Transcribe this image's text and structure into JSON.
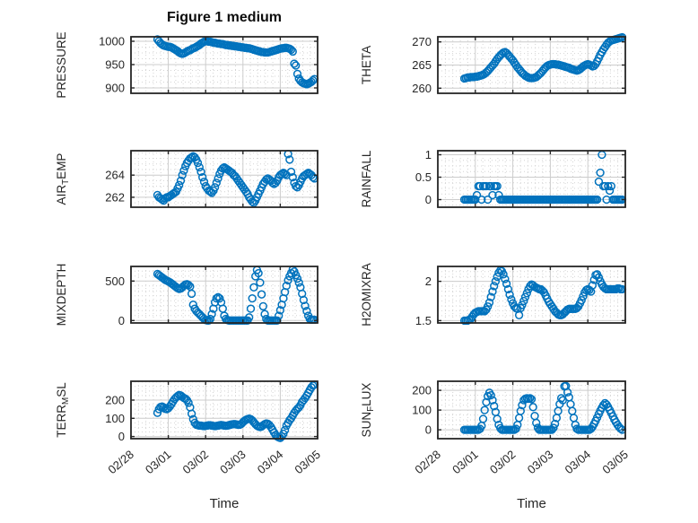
{
  "colors": {
    "marker": "#0072BD",
    "axis": "#262626",
    "grid_major": "#cccccc",
    "grid_minor": "#d4d4d4",
    "text": "#262626",
    "title": "#0d0d0d"
  },
  "chart_data": {
    "type": "scatter",
    "title": "Figure 1 medium",
    "xlabel": "Time",
    "legend": "none",
    "grid": "major solid, minor dotted",
    "x_tick_labels": [
      "02/28",
      "03/01",
      "03/02",
      "03/03",
      "03/04",
      "03/05"
    ],
    "x_tick_values": [
      0,
      1,
      2,
      3,
      4,
      5
    ],
    "xlim_days": [
      0,
      5
    ],
    "x_start_days": 0.7083,
    "x_step_days": 0.0416667,
    "marker": "open-circle",
    "subplots": [
      {
        "id": "pressure",
        "name": "PRESSURE",
        "row": 0,
        "col": 0,
        "ylabel": [
          {
            "t": "PRESSURE"
          }
        ],
        "ylim": [
          888.5,
          1009.6
        ],
        "yticks": [
          900,
          950,
          1000
        ],
        "ytick_labels": [
          "900",
          "950",
          "1000"
        ],
        "yminor": 4,
        "y": [
          1004,
          1000,
          996,
          993,
          991,
          990,
          989,
          988,
          988,
          987,
          985,
          983,
          981,
          979,
          976,
          974,
          973,
          974,
          976,
          978,
          980,
          981,
          983,
          985,
          986,
          988,
          990,
          992,
          995,
          997,
          999,
          1000,
          1000,
          999,
          999,
          998,
          997,
          997,
          996,
          995,
          995,
          994,
          994,
          993,
          992,
          992,
          991,
          991,
          990,
          990,
          989,
          989,
          988,
          988,
          987,
          987,
          986,
          986,
          985,
          985,
          984,
          983,
          982,
          981,
          980,
          979,
          978,
          977,
          977,
          976,
          976,
          976,
          977,
          978,
          979,
          980,
          981,
          982,
          983,
          984,
          985,
          985,
          986,
          986,
          985,
          984,
          982,
          978,
          952,
          948,
          930,
          920,
          915,
          912,
          910,
          909,
          908,
          909,
          911,
          913,
          916,
          919
        ]
      },
      {
        "id": "theta",
        "name": "THETA",
        "row": 0,
        "col": 1,
        "ylabel": [
          {
            "t": "THETA"
          }
        ],
        "ylim": [
          258.9,
          271.1
        ],
        "yticks": [
          260,
          265,
          270
        ],
        "ytick_labels": [
          "260",
          "265",
          "270"
        ],
        "yminor": 4,
        "y": [
          262.1,
          262.2,
          262.3,
          262.3,
          262.4,
          262.4,
          262.4,
          262.5,
          262.5,
          262.6,
          262.7,
          262.8,
          262.9,
          263.1,
          263.4,
          263.7,
          264.1,
          264.5,
          264.9,
          265.3,
          265.8,
          266.3,
          266.7,
          267.1,
          267.4,
          267.7,
          267.8,
          267.6,
          267.2,
          266.8,
          266.4,
          266.0,
          265.5,
          265.0,
          264.5,
          264.1,
          263.7,
          263.3,
          263.0,
          262.7,
          262.5,
          262.3,
          262.2,
          262.2,
          262.2,
          262.3,
          262.4,
          262.7,
          263.0,
          263.3,
          263.7,
          264.1,
          264.5,
          264.8,
          265.0,
          265.1,
          265.2,
          265.2,
          265.2,
          265.1,
          265.1,
          265.0,
          264.9,
          264.8,
          264.7,
          264.6,
          264.5,
          264.4,
          264.2,
          264.1,
          264.0,
          263.9,
          263.8,
          263.9,
          264.1,
          264.4,
          264.7,
          264.9,
          265.1,
          265.2,
          265.1,
          264.9,
          264.7,
          264.8,
          265.2,
          265.8,
          266.5,
          267.2,
          267.8,
          268.4,
          268.9,
          269.4,
          269.8,
          270.1,
          270.3,
          270.4,
          270.5,
          270.6,
          270.7,
          270.8,
          270.9,
          271.0
        ]
      },
      {
        "id": "air-temp",
        "name": "AIR_TEMP",
        "row": 1,
        "col": 0,
        "ylabel": [
          {
            "t": "AIR"
          },
          {
            "t": "T",
            "sub": true
          },
          {
            "t": "EMP"
          }
        ],
        "ylim": [
          261.1,
          266.2
        ],
        "yticks": [
          262,
          264
        ],
        "ytick_labels": [
          "262",
          "264"
        ],
        "yminor": 4,
        "y": [
          262.2,
          262.0,
          261.9,
          261.8,
          261.7,
          261.9,
          262.0,
          262.0,
          262.1,
          262.2,
          262.3,
          262.4,
          262.5,
          262.8,
          263.1,
          263.5,
          264.0,
          264.4,
          264.8,
          265.1,
          265.3,
          265.5,
          265.6,
          265.7,
          265.6,
          265.4,
          265.1,
          264.7,
          264.3,
          263.8,
          263.4,
          263.0,
          262.8,
          262.6,
          262.5,
          262.4,
          262.6,
          262.9,
          263.3,
          263.7,
          264.1,
          264.4,
          264.6,
          264.7,
          264.6,
          264.5,
          264.4,
          264.3,
          264.2,
          264.0,
          263.9,
          263.7,
          263.5,
          263.3,
          263.1,
          262.9,
          262.7,
          262.5,
          262.3,
          262.0,
          261.8,
          261.6,
          261.5,
          261.7,
          262.0,
          262.3,
          262.6,
          262.9,
          263.2,
          263.4,
          263.6,
          263.7,
          263.6,
          263.5,
          263.3,
          263.2,
          263.3,
          263.5,
          263.8,
          264.0,
          264.1,
          264.2,
          264.1,
          264.0,
          265.9,
          265.4,
          264.3,
          263.8,
          263.3,
          263.0,
          262.9,
          263.1,
          263.4,
          263.7,
          263.9,
          264.0,
          264.1,
          264.2,
          264.1,
          264.0,
          263.8,
          263.7
        ]
      },
      {
        "id": "rainfall",
        "name": "RAINFALL",
        "row": 1,
        "col": 1,
        "ylabel": [
          {
            "t": "RAINFALL"
          }
        ],
        "ylim": [
          -0.17,
          1.09
        ],
        "yticks": [
          0,
          0.5,
          1
        ],
        "ytick_labels": [
          "0",
          "0.5",
          "1"
        ],
        "yminor": 4,
        "y": [
          0,
          0,
          0,
          0,
          0,
          0,
          0,
          0,
          0.1,
          0.3,
          0.3,
          0,
          0.3,
          0.3,
          0.3,
          0,
          0.3,
          0.3,
          0.1,
          0.3,
          0.3,
          0.3,
          0.1,
          0,
          0,
          0,
          0,
          0,
          0,
          0,
          0,
          0,
          0,
          0,
          0,
          0,
          0,
          0,
          0,
          0,
          0,
          0,
          0,
          0,
          0,
          0,
          0,
          0,
          0,
          0,
          0,
          0,
          0,
          0,
          0,
          0,
          0,
          0,
          0,
          0,
          0,
          0,
          0,
          0,
          0,
          0,
          0,
          0,
          0,
          0,
          0,
          0,
          0,
          0,
          0,
          0,
          0,
          0,
          0,
          0,
          0,
          0,
          0,
          0,
          0,
          0,
          0.4,
          0.6,
          1.0,
          0.3,
          0.3,
          0,
          0.3,
          0.2,
          0.3,
          0,
          0,
          0,
          0,
          0,
          0,
          0
        ]
      },
      {
        "id": "mixdepth",
        "name": "MIXDEPTH",
        "row": 2,
        "col": 0,
        "ylabel": [
          {
            "t": "MIXDEPTH"
          }
        ],
        "ylim": [
          -31,
          685
        ],
        "yticks": [
          0,
          500
        ],
        "ytick_labels": [
          "0",
          "500"
        ],
        "yminor": 8,
        "y": [
          590,
          575,
          560,
          545,
          530,
          515,
          505,
          495,
          485,
          470,
          455,
          440,
          425,
          410,
          400,
          405,
          420,
          440,
          455,
          460,
          450,
          430,
          340,
          200,
          150,
          120,
          100,
          80,
          60,
          40,
          20,
          5,
          0,
          0,
          20,
          80,
          150,
          230,
          280,
          295,
          280,
          230,
          150,
          60,
          20,
          5,
          0,
          0,
          0,
          0,
          0,
          0,
          0,
          0,
          0,
          0,
          0,
          0,
          0,
          40,
          150,
          280,
          420,
          560,
          640,
          600,
          480,
          330,
          180,
          80,
          20,
          0,
          0,
          0,
          0,
          0,
          0,
          0,
          60,
          130,
          200,
          280,
          360,
          440,
          510,
          560,
          600,
          645,
          620,
          575,
          530,
          480,
          420,
          340,
          260,
          185,
          120,
          60,
          20,
          10,
          10,
          10
        ]
      },
      {
        "id": "h2omixra",
        "name": "H2OMIXRA",
        "row": 2,
        "col": 1,
        "ylabel": [
          {
            "t": "H2OMIXRA"
          }
        ],
        "ylim": [
          1.47,
          2.19
        ],
        "yticks": [
          1.5,
          2
        ],
        "ytick_labels": [
          "1.5",
          "2"
        ],
        "yminor": 8,
        "y": [
          1.5,
          1.5,
          1.5,
          1.51,
          1.52,
          1.55,
          1.58,
          1.6,
          1.61,
          1.62,
          1.62,
          1.62,
          1.62,
          1.62,
          1.64,
          1.68,
          1.73,
          1.8,
          1.87,
          1.94,
          2.0,
          2.06,
          2.11,
          2.14,
          2.13,
          2.09,
          2.03,
          1.97,
          1.9,
          1.83,
          1.77,
          1.72,
          1.68,
          1.66,
          1.65,
          1.57,
          1.66,
          1.7,
          1.75,
          1.8,
          1.85,
          1.9,
          1.94,
          1.96,
          1.95,
          1.93,
          1.92,
          1.91,
          1.9,
          1.9,
          1.88,
          1.86,
          1.82,
          1.78,
          1.74,
          1.71,
          1.68,
          1.65,
          1.62,
          1.6,
          1.58,
          1.57,
          1.57,
          1.58,
          1.6,
          1.62,
          1.64,
          1.65,
          1.65,
          1.65,
          1.65,
          1.65,
          1.66,
          1.68,
          1.72,
          1.76,
          1.81,
          1.86,
          1.89,
          1.9,
          1.89,
          1.87,
          1.95,
          2.02,
          2.08,
          2.09,
          2.05,
          2.0,
          1.96,
          1.93,
          1.91,
          1.9,
          1.9,
          1.9,
          1.9,
          1.9,
          1.9,
          1.9,
          1.91,
          1.91,
          1.9,
          1.9
        ]
      },
      {
        "id": "terr-msl",
        "name": "TERR_MSL",
        "row": 3,
        "col": 0,
        "ylabel": [
          {
            "t": "TERR"
          },
          {
            "t": "M",
            "sub": true
          },
          {
            "t": "SL"
          }
        ],
        "ylim": [
          -12,
          303.5
        ],
        "yticks": [
          0,
          100,
          200
        ],
        "ytick_labels": [
          "0",
          "100",
          "200"
        ],
        "yminor": 4,
        "y": [
          130,
          150,
          162,
          165,
          160,
          152,
          150,
          155,
          165,
          178,
          192,
          205,
          215,
          222,
          228,
          225,
          218,
          212,
          208,
          200,
          185,
          160,
          125,
          95,
          75,
          65,
          62,
          60,
          60,
          58,
          57,
          58,
          60,
          62,
          62,
          60,
          58,
          57,
          58,
          60,
          62,
          63,
          62,
          60,
          59,
          60,
          62,
          65,
          67,
          68,
          68,
          66,
          64,
          65,
          70,
          78,
          86,
          92,
          96,
          98,
          95,
          88,
          78,
          68,
          60,
          55,
          52,
          55,
          62,
          68,
          72,
          70,
          63,
          52,
          38,
          22,
          8,
          0,
          -5,
          -8,
          0,
          15,
          35,
          60,
          75,
          90,
          100,
          115,
          130,
          142,
          152,
          160,
          172,
          190,
          200,
          212,
          225,
          240,
          255,
          270,
          280,
          285
        ]
      },
      {
        "id": "sun-flux",
        "name": "SUN_FLUX",
        "row": 3,
        "col": 1,
        "ylabel": [
          {
            "t": "SUN"
          },
          {
            "t": "F",
            "sub": true
          },
          {
            "t": "LUX"
          }
        ],
        "ylim": [
          -45,
          246
        ],
        "yticks": [
          0,
          100,
          200
        ],
        "ytick_labels": [
          "0",
          "100",
          "200"
        ],
        "yminor": 4,
        "y": [
          0,
          0,
          0,
          0,
          0,
          0,
          0,
          0,
          0,
          0,
          5,
          20,
          55,
          100,
          140,
          170,
          188,
          175,
          150,
          120,
          90,
          55,
          25,
          8,
          0,
          0,
          0,
          0,
          0,
          0,
          0,
          0,
          0,
          5,
          25,
          60,
          95,
          125,
          150,
          158,
          160,
          158,
          160,
          155,
          115,
          70,
          35,
          10,
          0,
          0,
          0,
          0,
          0,
          0,
          0,
          0,
          0,
          10,
          30,
          60,
          95,
          130,
          160,
          150,
          220,
          222,
          190,
          165,
          130,
          95,
          60,
          25,
          5,
          0,
          0,
          0,
          0,
          0,
          0,
          0,
          0,
          5,
          15,
          30,
          45,
          62,
          80,
          97,
          112,
          125,
          135,
          128,
          115,
          100,
          85,
          68,
          52,
          38,
          25,
          14,
          6,
          0
        ]
      }
    ]
  }
}
